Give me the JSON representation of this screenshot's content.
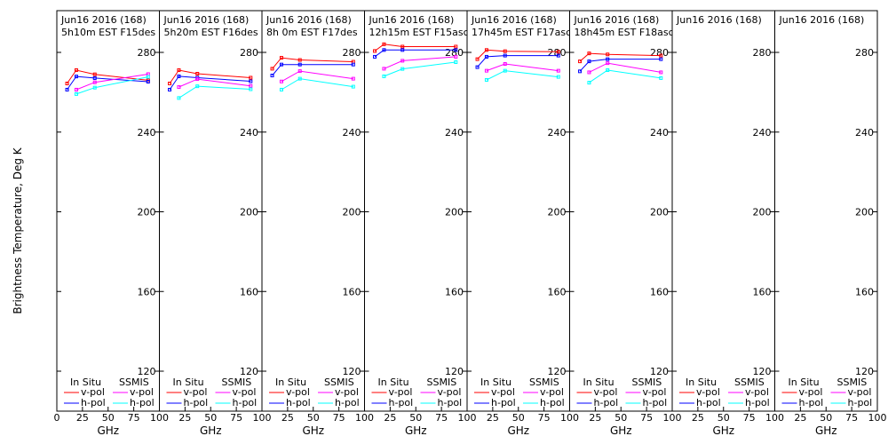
{
  "chart_data": {
    "type": "line",
    "ylabel": "Brightness Temperature, Deg K",
    "xlabel": "GHz",
    "xlim": [
      0,
      100
    ],
    "ylim": [
      110,
      295
    ],
    "xticks": [
      0,
      25,
      50,
      75,
      100
    ],
    "yticks": [
      120,
      160,
      200,
      240,
      280
    ],
    "legend": {
      "insitu_header": "In Situ",
      "ssmis_header": "SSMIS",
      "vpol": "v-pol",
      "hpol": "h-pol"
    },
    "series_colors": {
      "insitu_v": "#ff0000",
      "insitu_h": "#0000ff",
      "ssmis_v": "#ff00ff",
      "ssmis_h": "#00ffff"
    },
    "panels": [
      {
        "title1": "Jun16 2016 (168)",
        "title2": "5h10m EST F15des",
        "insitu_v": {
          "x": [
            10,
            19,
            37,
            89
          ],
          "y": [
            264.4,
            271.1,
            269.0,
            266.0
          ]
        },
        "insitu_h": {
          "x": [
            10,
            19,
            37,
            89
          ],
          "y": [
            261.3,
            267.9,
            267.1,
            265.3
          ]
        },
        "ssmis_v": {
          "x": [
            19,
            37,
            89
          ],
          "y": [
            261.3,
            265.0,
            269.1
          ]
        },
        "ssmis_h": {
          "x": [
            19,
            37,
            89
          ],
          "y": [
            259.1,
            262.3,
            267.7
          ]
        }
      },
      {
        "title1": "Jun16 2016 (168)",
        "title2": "5h20m EST F16des",
        "insitu_v": {
          "x": [
            10,
            19,
            37,
            89
          ],
          "y": [
            264.4,
            271.1,
            269.3,
            267.3
          ]
        },
        "insitu_h": {
          "x": [
            10,
            19,
            37,
            89
          ],
          "y": [
            261.3,
            268.0,
            267.3,
            265.5
          ]
        },
        "ssmis_v": {
          "x": [
            19,
            37,
            89
          ],
          "y": [
            262.6,
            266.6,
            263.2
          ]
        },
        "ssmis_h": {
          "x": [
            19,
            37,
            89
          ],
          "y": [
            257.1,
            263.0,
            261.5
          ]
        }
      },
      {
        "title1": "Jun16 2016 (168)",
        "title2": "8h 0m  EST F17des",
        "insitu_v": {
          "x": [
            10,
            19,
            37,
            89
          ],
          "y": [
            271.8,
            277.3,
            276.2,
            275.3
          ]
        },
        "insitu_h": {
          "x": [
            10,
            19,
            37,
            89
          ],
          "y": [
            268.4,
            273.9,
            273.9,
            273.9
          ]
        },
        "ssmis_v": {
          "x": [
            19,
            37,
            89
          ],
          "y": [
            265.4,
            270.6,
            266.8
          ]
        },
        "ssmis_h": {
          "x": [
            19,
            37,
            89
          ],
          "y": [
            261.3,
            266.8,
            262.8
          ]
        }
      },
      {
        "title1": "Jun16 2016 (168)",
        "title2": "12h15m EST F15asc",
        "insitu_v": {
          "x": [
            10,
            19,
            37,
            89
          ],
          "y": [
            280.7,
            284.1,
            282.9,
            282.9
          ]
        },
        "insitu_h": {
          "x": [
            10,
            19,
            37,
            89
          ],
          "y": [
            277.8,
            281.2,
            281.2,
            281.2
          ]
        },
        "ssmis_v": {
          "x": [
            19,
            37,
            89
          ],
          "y": [
            271.8,
            275.8,
            277.8
          ]
        },
        "ssmis_h": {
          "x": [
            19,
            37,
            89
          ],
          "y": [
            268.0,
            271.7,
            275.1
          ]
        }
      },
      {
        "title1": "Jun16 2016 (168)",
        "title2": "17h45m EST F17asc",
        "insitu_v": {
          "x": [
            10,
            19,
            37,
            89
          ],
          "y": [
            276.6,
            281.2,
            280.6,
            280.3
          ]
        },
        "insitu_h": {
          "x": [
            10,
            19,
            37,
            89
          ],
          "y": [
            272.6,
            277.8,
            278.4,
            278.4
          ]
        },
        "ssmis_v": {
          "x": [
            19,
            37,
            89
          ],
          "y": [
            270.8,
            274.2,
            270.8
          ]
        },
        "ssmis_h": {
          "x": [
            19,
            37,
            89
          ],
          "y": [
            266.2,
            270.8,
            267.7
          ]
        }
      },
      {
        "title1": "Jun16 2016 (168)",
        "title2": "18h45m EST F18asc",
        "insitu_v": {
          "x": [
            10,
            19,
            37,
            89
          ],
          "y": [
            275.5,
            279.5,
            279.0,
            278.4
          ]
        },
        "insitu_h": {
          "x": [
            10,
            19,
            37,
            89
          ],
          "y": [
            270.5,
            275.5,
            276.6,
            276.6
          ]
        },
        "ssmis_v": {
          "x": [
            19,
            37,
            89
          ],
          "y": [
            270.0,
            274.6,
            270.0
          ]
        },
        "ssmis_h": {
          "x": [
            19,
            37,
            89
          ],
          "y": [
            264.8,
            271.1,
            267.1
          ]
        }
      },
      {
        "title1": "Jun16 2016 (168)",
        "title2": "",
        "insitu_v": {
          "x": [],
          "y": []
        },
        "insitu_h": {
          "x": [],
          "y": []
        },
        "ssmis_v": {
          "x": [],
          "y": []
        },
        "ssmis_h": {
          "x": [],
          "y": []
        }
      },
      {
        "title1": "Jun16 2016 (168)",
        "title2": "",
        "insitu_v": {
          "x": [],
          "y": []
        },
        "insitu_h": {
          "x": [],
          "y": []
        },
        "ssmis_v": {
          "x": [],
          "y": []
        },
        "ssmis_h": {
          "x": [],
          "y": []
        }
      }
    ]
  }
}
